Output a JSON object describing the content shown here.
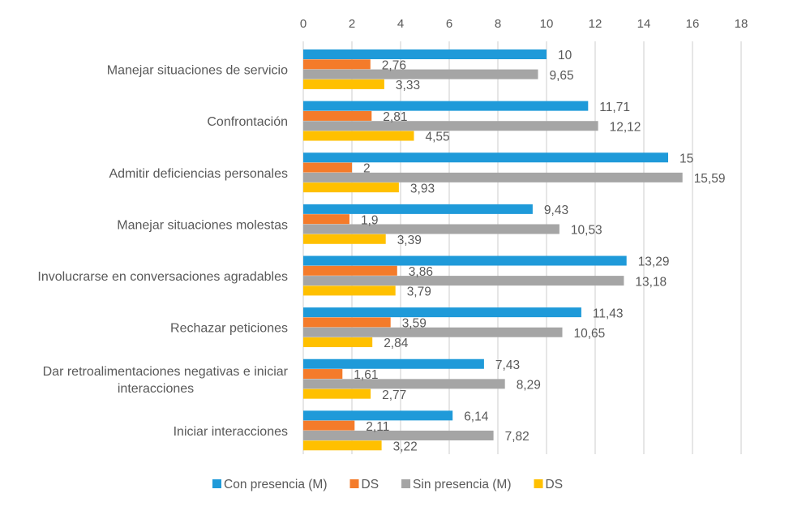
{
  "chart_data": {
    "type": "bar",
    "orientation": "horizontal",
    "title": "",
    "xlabel": "",
    "ylabel": "",
    "xlim": [
      0,
      18
    ],
    "x_ticks": [
      0,
      2,
      4,
      6,
      8,
      10,
      12,
      14,
      16,
      18
    ],
    "x_tick_labels": [
      "0",
      "2",
      "4",
      "6",
      "8",
      "10",
      "12",
      "14",
      "16",
      "18"
    ],
    "x_axis_position": "top",
    "grid": true,
    "legend_position": "bottom",
    "categories": [
      "Manejar situaciones de servicio",
      "Confrontación",
      "Admitir deficiencias personales",
      "Manejar situaciones molestas",
      "Involucrarse en conversaciones agradables",
      "Rechazar peticiones",
      "Dar retroalimentaciones negativas e iniciar interacciones",
      "Iniciar interacciones"
    ],
    "category_label_lines": [
      [
        "Manejar situaciones de servicio"
      ],
      [
        "Confrontación"
      ],
      [
        "Admitir deficiencias personales"
      ],
      [
        "Manejar situaciones molestas"
      ],
      [
        "Involucrarse en conversaciones agradables"
      ],
      [
        "Rechazar peticiones"
      ],
      [
        "Dar retroalimentaciones negativas e iniciar",
        "interacciones"
      ],
      [
        "Iniciar interacciones"
      ]
    ],
    "series": [
      {
        "name": "Con presencia (M)",
        "color": "#1f9ad9",
        "values": [
          10,
          11.71,
          15,
          9.43,
          13.29,
          11.43,
          7.43,
          6.14
        ],
        "labels": [
          "10",
          "11,71",
          "15",
          "9,43",
          "13,29",
          "11,43",
          "7,43",
          "6,14"
        ]
      },
      {
        "name": "DS",
        "color": "#f47b2a",
        "values": [
          2.76,
          2.81,
          2,
          1.9,
          3.86,
          3.59,
          1.61,
          2.11
        ],
        "labels": [
          "2,76",
          "2,81",
          "2",
          "1,9",
          "3,86",
          "3,59",
          "1,61",
          "2,11"
        ]
      },
      {
        "name": "Sin presencia (M)",
        "color": "#a5a5a5",
        "values": [
          9.65,
          12.12,
          15.59,
          10.53,
          13.18,
          10.65,
          8.29,
          7.82
        ],
        "labels": [
          "9,65",
          "12,12",
          "15,59",
          "10,53",
          "13,18",
          "10,65",
          "8,29",
          "7,82"
        ]
      },
      {
        "name": "DS",
        "color": "#ffc000",
        "values": [
          3.33,
          4.55,
          3.93,
          3.39,
          3.79,
          2.84,
          2.77,
          3.22
        ],
        "labels": [
          "3,33",
          "4,55",
          "3,93",
          "3,39",
          "3,79",
          "2,84",
          "2,77",
          "3,22"
        ]
      }
    ]
  }
}
